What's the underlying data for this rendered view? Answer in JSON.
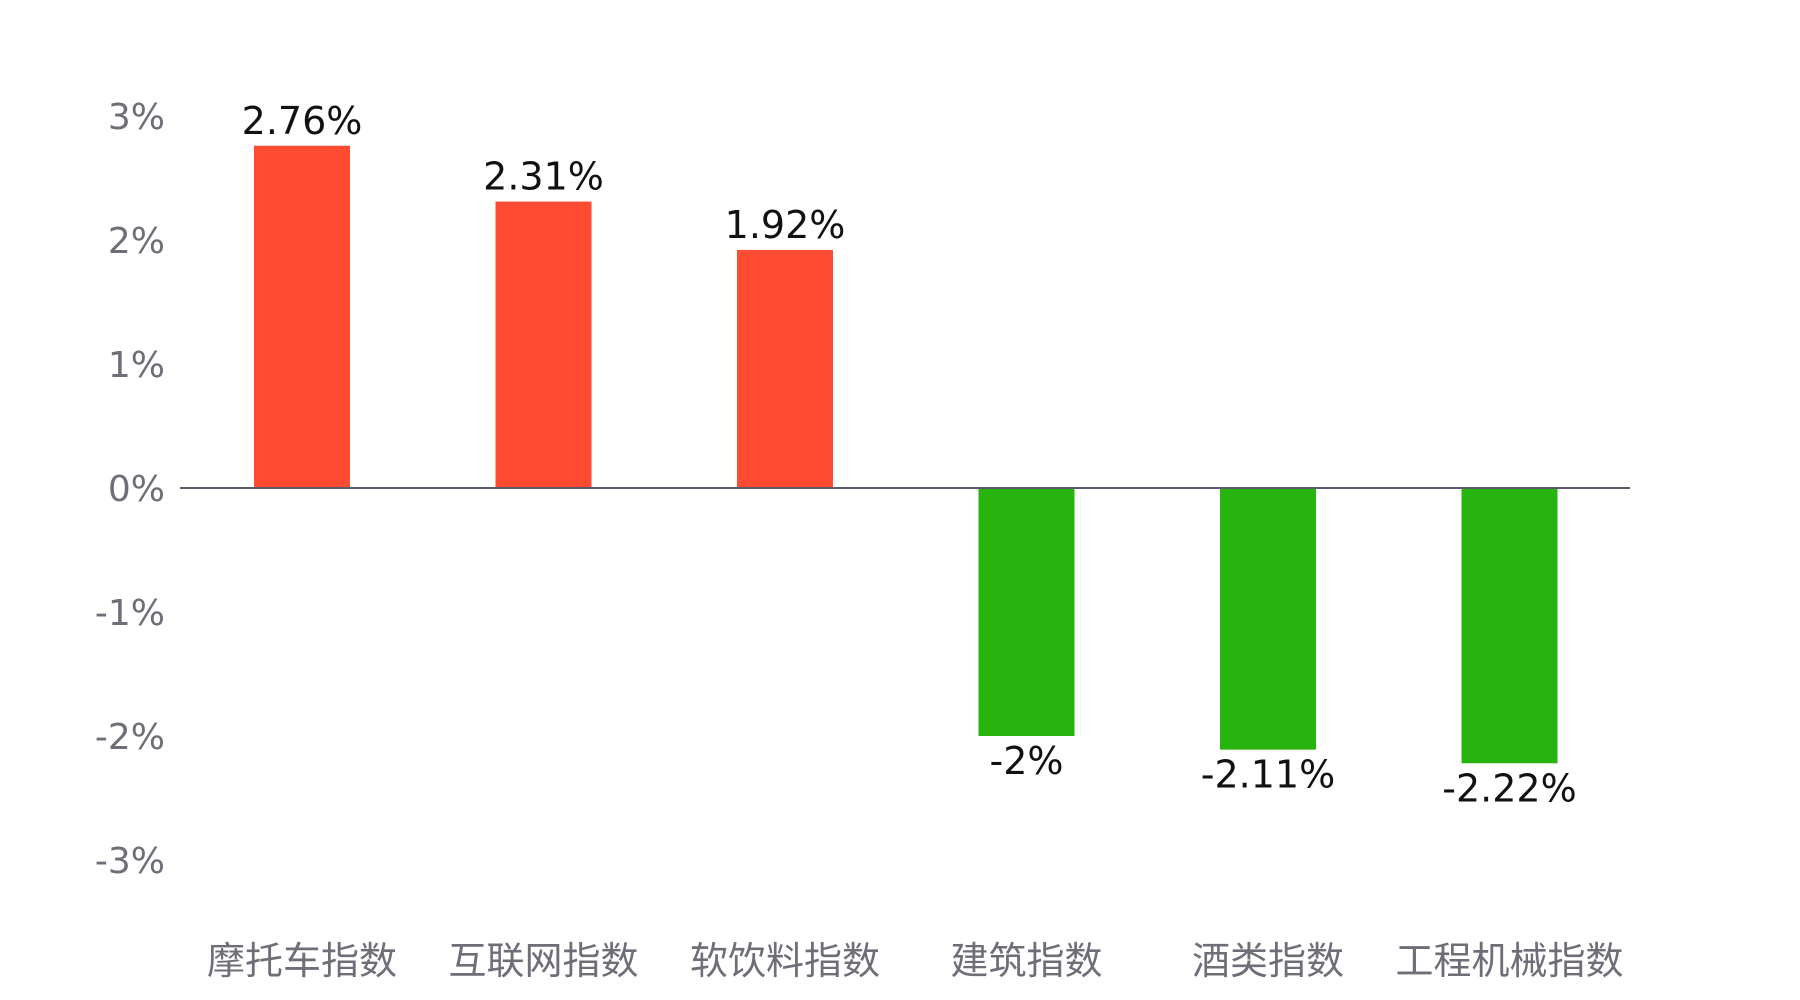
{
  "chart_data": {
    "type": "bar",
    "categories": [
      "摩托车指数",
      "互联网指数",
      "软饮料指数",
      "建筑指数",
      "酒类指数",
      "工程机械指数"
    ],
    "values": [
      2.76,
      2.31,
      1.92,
      -2,
      -2.11,
      -2.22
    ],
    "value_labels": [
      "2.76%",
      "2.31%",
      "1.92%",
      "-2%",
      "-2.11%",
      "-2.22%"
    ],
    "yticks": [
      3,
      2,
      1,
      0,
      -1,
      -2,
      -3
    ],
    "ytick_labels": [
      "3%",
      "2%",
      "1%",
      "0%",
      "-1%",
      "-2%",
      "-3%"
    ],
    "ylim": [
      -3,
      3
    ],
    "grid": false,
    "legend": "none",
    "colors": {
      "positive": "#ff4b32",
      "negative": "#28b40f",
      "zero_line": "#5a5a6a"
    }
  }
}
